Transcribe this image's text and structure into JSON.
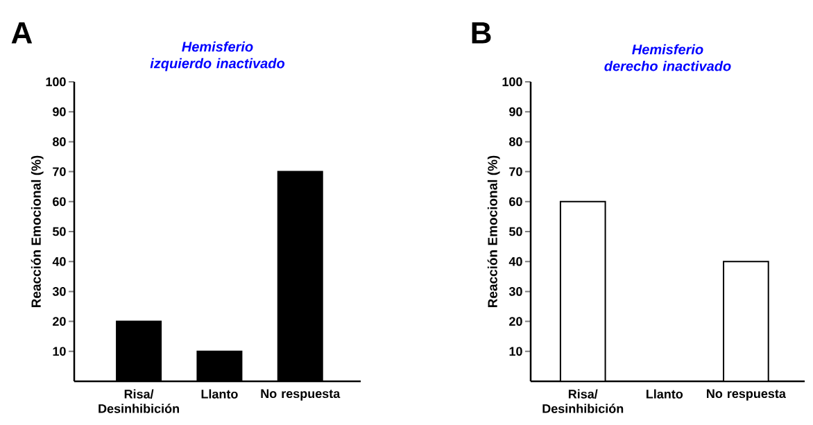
{
  "chart_data": [
    {
      "type": "bar",
      "title": "Hemisferio izquierdo inactivado",
      "ylabel": "Reacción Emocional (%)",
      "categories": [
        "Risa/ Desinhibición",
        "Llanto",
        "No respuesta"
      ],
      "values": [
        20,
        10,
        70
      ],
      "color": "#000000",
      "ylim": [
        0,
        100
      ],
      "yticks": [
        10,
        20,
        30,
        40,
        50,
        60,
        70,
        80,
        90,
        100
      ],
      "annotations": [
        "A"
      ]
    },
    {
      "type": "bar",
      "title": "Hemisferio derecho inactivado",
      "ylabel": "Reacción Emocional (%)",
      "categories": [
        "Risa/ Desinhibición",
        "Llanto",
        "No respuesta"
      ],
      "values": [
        60,
        0,
        40
      ],
      "color": "#ffffff",
      "ylim": [
        0,
        100
      ],
      "yticks": [
        10,
        20,
        30,
        40,
        50,
        60,
        70,
        80,
        90,
        100
      ],
      "annotations": [
        "B"
      ]
    }
  ]
}
